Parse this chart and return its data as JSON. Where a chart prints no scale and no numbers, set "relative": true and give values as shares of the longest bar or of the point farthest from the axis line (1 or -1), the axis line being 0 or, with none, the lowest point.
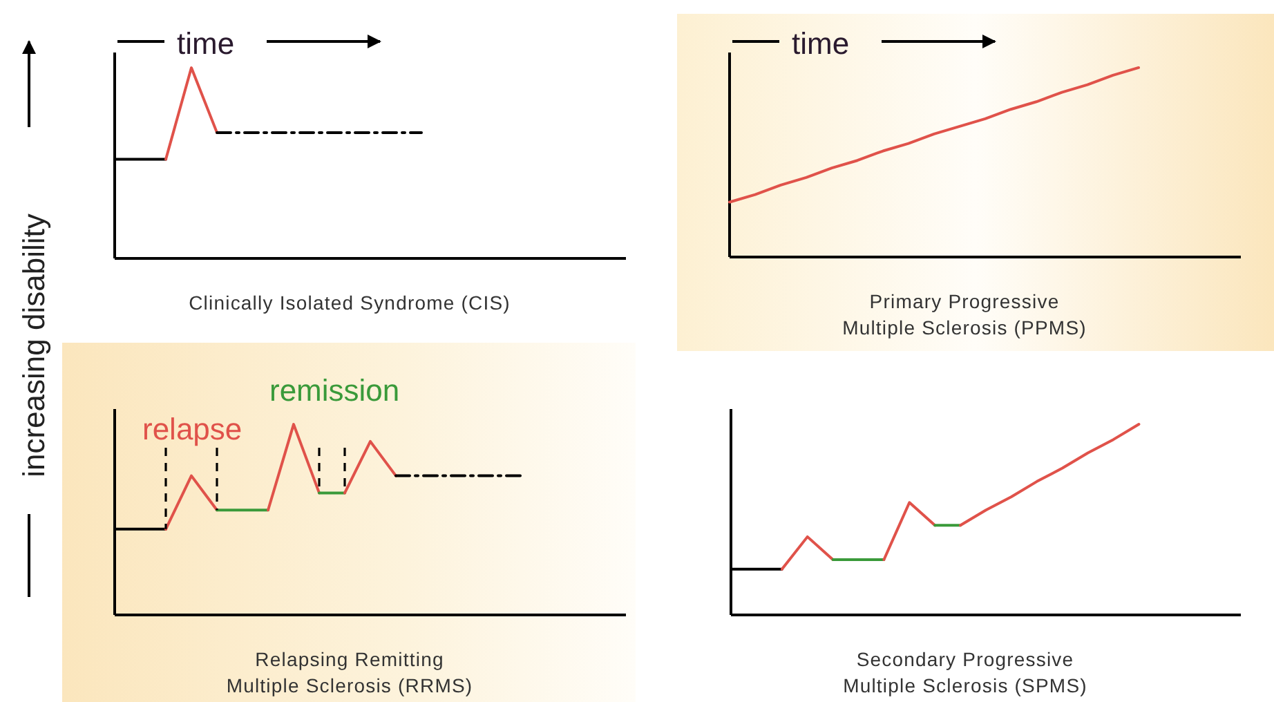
{
  "chart_data": [
    {
      "type": "line",
      "title": "Clinically Isolated Syndrome (CIS)",
      "xlabel": "time",
      "ylabel": "increasing disability",
      "relative": true,
      "categories": [
        null,
        null,
        null,
        null,
        null,
        null,
        null,
        null,
        null,
        null,
        null,
        null,
        null,
        null,
        null,
        null,
        null,
        null,
        null,
        null,
        null
      ],
      "series": [
        {
          "color": "#000000",
          "values": [
            0.52,
            0.52,
            0.52,
            null,
            null,
            null,
            null,
            null,
            null,
            null,
            null,
            null,
            null,
            null,
            null,
            null,
            null,
            null,
            null,
            null,
            null
          ]
        },
        {
          "color": "#e0524a",
          "values": [
            null,
            null,
            0.52,
            1,
            0.66,
            null,
            null,
            null,
            null,
            null,
            null,
            null,
            null,
            null,
            null,
            null,
            null,
            null,
            null,
            null,
            null
          ]
        },
        {
          "color": "#000000",
          "line_style": "dashed",
          "values": [
            null,
            null,
            null,
            null,
            0.66,
            0.66,
            0.66,
            0.66,
            0.66,
            0.66,
            0.66,
            0.66,
            0.66,
            null,
            null,
            null,
            null,
            null,
            null,
            null,
            null
          ]
        }
      ]
    },
    {
      "type": "line",
      "title": "Primary Progressive\nMultiple Sclerosis (PPMS)",
      "xlabel": "time",
      "relative": true,
      "categories": [
        null,
        null,
        null,
        null,
        null,
        null,
        null,
        null,
        null,
        null,
        null,
        null,
        null,
        null,
        null,
        null,
        null,
        null,
        null,
        null,
        null
      ],
      "series": [
        {
          "color": "#e0524a",
          "values": [
            0.29,
            0.33,
            0.38,
            0.42,
            0.47,
            0.51,
            0.56,
            0.6,
            0.65,
            0.69,
            0.73,
            0.78,
            0.82,
            0.87,
            0.91,
            0.96,
            1,
            null,
            null,
            null,
            null
          ]
        }
      ]
    },
    {
      "type": "line",
      "title": "Relapsing Remitting\nMultiple Sclerosis (RRMS)",
      "relative": true,
      "annotations": [
        "relapse",
        "remission"
      ],
      "categories": [
        null,
        null,
        null,
        null,
        null,
        null,
        null,
        null,
        null,
        null,
        null,
        null,
        null,
        null,
        null,
        null,
        null,
        null,
        null,
        null,
        null
      ],
      "series": [
        {
          "color": "#000000",
          "values": [
            0.45,
            0.45,
            0.45,
            null,
            null,
            null,
            null,
            null,
            null,
            null,
            null,
            null,
            null,
            null,
            null,
            null,
            null,
            null,
            null,
            null,
            null
          ]
        },
        {
          "color": "#e0524a",
          "values": [
            null,
            null,
            0.45,
            0.73,
            0.55,
            null,
            null,
            null,
            null,
            null,
            null,
            null,
            null,
            null,
            null,
            null,
            null,
            null,
            null,
            null,
            null
          ]
        },
        {
          "color": "#3a9a3a",
          "values": [
            null,
            null,
            null,
            null,
            0.55,
            0.55,
            0.55,
            null,
            null,
            null,
            null,
            null,
            null,
            null,
            null,
            null,
            null,
            null,
            null,
            null,
            null
          ]
        },
        {
          "color": "#e0524a",
          "values": [
            null,
            null,
            null,
            null,
            null,
            null,
            0.55,
            1,
            0.64,
            null,
            null,
            null,
            null,
            null,
            null,
            null,
            null,
            null,
            null,
            null,
            null
          ]
        },
        {
          "color": "#3a9a3a",
          "values": [
            null,
            null,
            null,
            null,
            null,
            null,
            null,
            null,
            0.64,
            0.64,
            null,
            null,
            null,
            null,
            null,
            null,
            null,
            null,
            null,
            null,
            null
          ]
        },
        {
          "color": "#e0524a",
          "values": [
            null,
            null,
            null,
            null,
            null,
            null,
            null,
            null,
            null,
            0.64,
            0.91,
            0.73,
            null,
            null,
            null,
            null,
            null,
            null,
            null,
            null,
            null
          ]
        },
        {
          "color": "#000000",
          "line_style": "dashed",
          "values": [
            null,
            null,
            null,
            null,
            null,
            null,
            null,
            null,
            null,
            null,
            null,
            0.73,
            0.73,
            0.73,
            0.73,
            0.73,
            0.73,
            null,
            null,
            null,
            null
          ]
        }
      ]
    },
    {
      "type": "line",
      "title": "Secondary Progressive\nMultiple Sclerosis (SPMS)",
      "relative": true,
      "categories": [
        null,
        null,
        null,
        null,
        null,
        null,
        null,
        null,
        null,
        null,
        null,
        null,
        null,
        null,
        null,
        null,
        null,
        null,
        null,
        null,
        null
      ],
      "series": [
        {
          "color": "#000000",
          "values": [
            0.24,
            0.24,
            0.24,
            null,
            null,
            null,
            null,
            null,
            null,
            null,
            null,
            null,
            null,
            null,
            null,
            null,
            null,
            null,
            null,
            null,
            null
          ]
        },
        {
          "color": "#e0524a",
          "values": [
            null,
            null,
            0.24,
            0.41,
            0.29,
            null,
            null,
            null,
            null,
            null,
            null,
            null,
            null,
            null,
            null,
            null,
            null,
            null,
            null,
            null,
            null
          ]
        },
        {
          "color": "#3a9a3a",
          "values": [
            null,
            null,
            null,
            null,
            0.29,
            0.29,
            0.29,
            null,
            null,
            null,
            null,
            null,
            null,
            null,
            null,
            null,
            null,
            null,
            null,
            null,
            null
          ]
        },
        {
          "color": "#e0524a",
          "values": [
            null,
            null,
            null,
            null,
            null,
            null,
            0.29,
            0.59,
            0.47,
            null,
            null,
            null,
            null,
            null,
            null,
            null,
            null,
            null,
            null,
            null,
            null
          ]
        },
        {
          "color": "#3a9a3a",
          "values": [
            null,
            null,
            null,
            null,
            null,
            null,
            null,
            null,
            0.47,
            0.47,
            null,
            null,
            null,
            null,
            null,
            null,
            null,
            null,
            null,
            null,
            null
          ]
        },
        {
          "color": "#e0524a",
          "values": [
            null,
            null,
            null,
            null,
            null,
            null,
            null,
            null,
            null,
            0.47,
            0.55,
            0.62,
            0.7,
            0.77,
            0.85,
            0.92,
            1,
            null,
            null,
            null,
            null
          ]
        }
      ]
    }
  ]
}
